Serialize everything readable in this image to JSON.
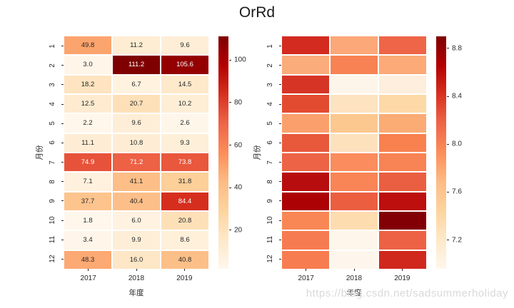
{
  "title": "OrRd",
  "watermark": "https://blog.csdn.net/sadsummerholiday",
  "background": "#ffffff",
  "text_color": "#262626",
  "palette": {
    "name": "OrRd",
    "anchors": [
      "#fff7ec",
      "#fee8c8",
      "#fdd49e",
      "#fdbb84",
      "#fc8d59",
      "#ef6548",
      "#d7301f",
      "#b30000",
      "#7f0000"
    ]
  },
  "chart_data": [
    {
      "type": "heatmap",
      "position": "left",
      "xlabel": "年度",
      "ylabel": "月份",
      "x_ticks": [
        "2017",
        "2018",
        "2019"
      ],
      "y_ticks": [
        "1",
        "2",
        "3",
        "4",
        "5",
        "6",
        "7",
        "8",
        "9",
        "10",
        "11",
        "12"
      ],
      "annotated": true,
      "vmin": 1.8,
      "vmax": 111.2,
      "values": [
        [
          49.8,
          11.2,
          9.6
        ],
        [
          3.0,
          111.2,
          105.6
        ],
        [
          18.2,
          6.7,
          14.5
        ],
        [
          12.5,
          20.7,
          10.2
        ],
        [
          2.2,
          9.6,
          2.6
        ],
        [
          11.1,
          10.8,
          9.3
        ],
        [
          74.9,
          71.2,
          73.8
        ],
        [
          7.1,
          41.1,
          31.8
        ],
        [
          37.7,
          40.4,
          84.4
        ],
        [
          1.8,
          6.0,
          20.8
        ],
        [
          3.4,
          9.9,
          8.6
        ],
        [
          48.3,
          16.0,
          40.8
        ]
      ],
      "colorbar_ticks": [
        {
          "value": 20,
          "label": "20"
        },
        {
          "value": 40,
          "label": "40"
        },
        {
          "value": 60,
          "label": "60"
        },
        {
          "value": 80,
          "label": "80"
        },
        {
          "value": 100,
          "label": "100"
        }
      ]
    },
    {
      "type": "heatmap",
      "position": "right",
      "xlabel": "年度",
      "ylabel": "月份",
      "x_ticks": [
        "2017",
        "2018",
        "2019"
      ],
      "y_ticks": [
        "1",
        "2",
        "3",
        "4",
        "5",
        "6",
        "7",
        "8",
        "9",
        "10",
        "11",
        "12"
      ],
      "annotated": false,
      "vmin": 6.96,
      "vmax": 8.9,
      "values_estimated_from_colors": true,
      "values": [
        [
          8.41,
          7.79,
          8.17
        ],
        [
          7.76,
          8.0,
          7.78
        ],
        [
          8.38,
          7.02,
          7.11
        ],
        [
          8.28,
          7.28,
          7.4
        ],
        [
          7.83,
          7.57,
          7.78
        ],
        [
          8.22,
          7.3,
          8.0
        ],
        [
          8.18,
          7.93,
          7.99
        ],
        [
          8.61,
          7.99,
          8.2
        ],
        [
          8.67,
          8.2,
          8.58
        ],
        [
          7.97,
          7.35,
          8.86
        ],
        [
          8.04,
          7.01,
          8.18
        ],
        [
          8.04,
          7.0,
          8.44
        ]
      ],
      "cell_colors": [
        [
          "#d32b1f",
          "#fca878",
          "#ee6547"
        ],
        [
          "#fbac7b",
          "#f88253",
          "#fbaa78"
        ],
        [
          "#d63526",
          "#fef5ea",
          "#feeedd"
        ],
        [
          "#e34b31",
          "#fde3c0",
          "#fdd9a7"
        ],
        [
          "#fba06c",
          "#fcc88f",
          "#fbab74"
        ],
        [
          "#e8593b",
          "#fde1bd",
          "#f8814f"
        ],
        [
          "#ec6445",
          "#fa8c5d",
          "#f88354"
        ],
        [
          "#b80d0e",
          "#f98455",
          "#ea5f41"
        ],
        [
          "#ac0206",
          "#eb5e40",
          "#bc0f0e"
        ],
        [
          "#f98755",
          "#fddcb0",
          "#820005"
        ],
        [
          "#f77b50",
          "#fef6eb",
          "#ed6245"
        ],
        [
          "#f77c50",
          "#fef6ec",
          "#d0281d"
        ]
      ],
      "colorbar_ticks": [
        {
          "value": 7.2,
          "label": "7.2"
        },
        {
          "value": 7.6,
          "label": "7.6"
        },
        {
          "value": 8.0,
          "label": "8.0"
        },
        {
          "value": 8.4,
          "label": "8.4"
        },
        {
          "value": 8.8,
          "label": "8.8"
        }
      ]
    }
  ]
}
